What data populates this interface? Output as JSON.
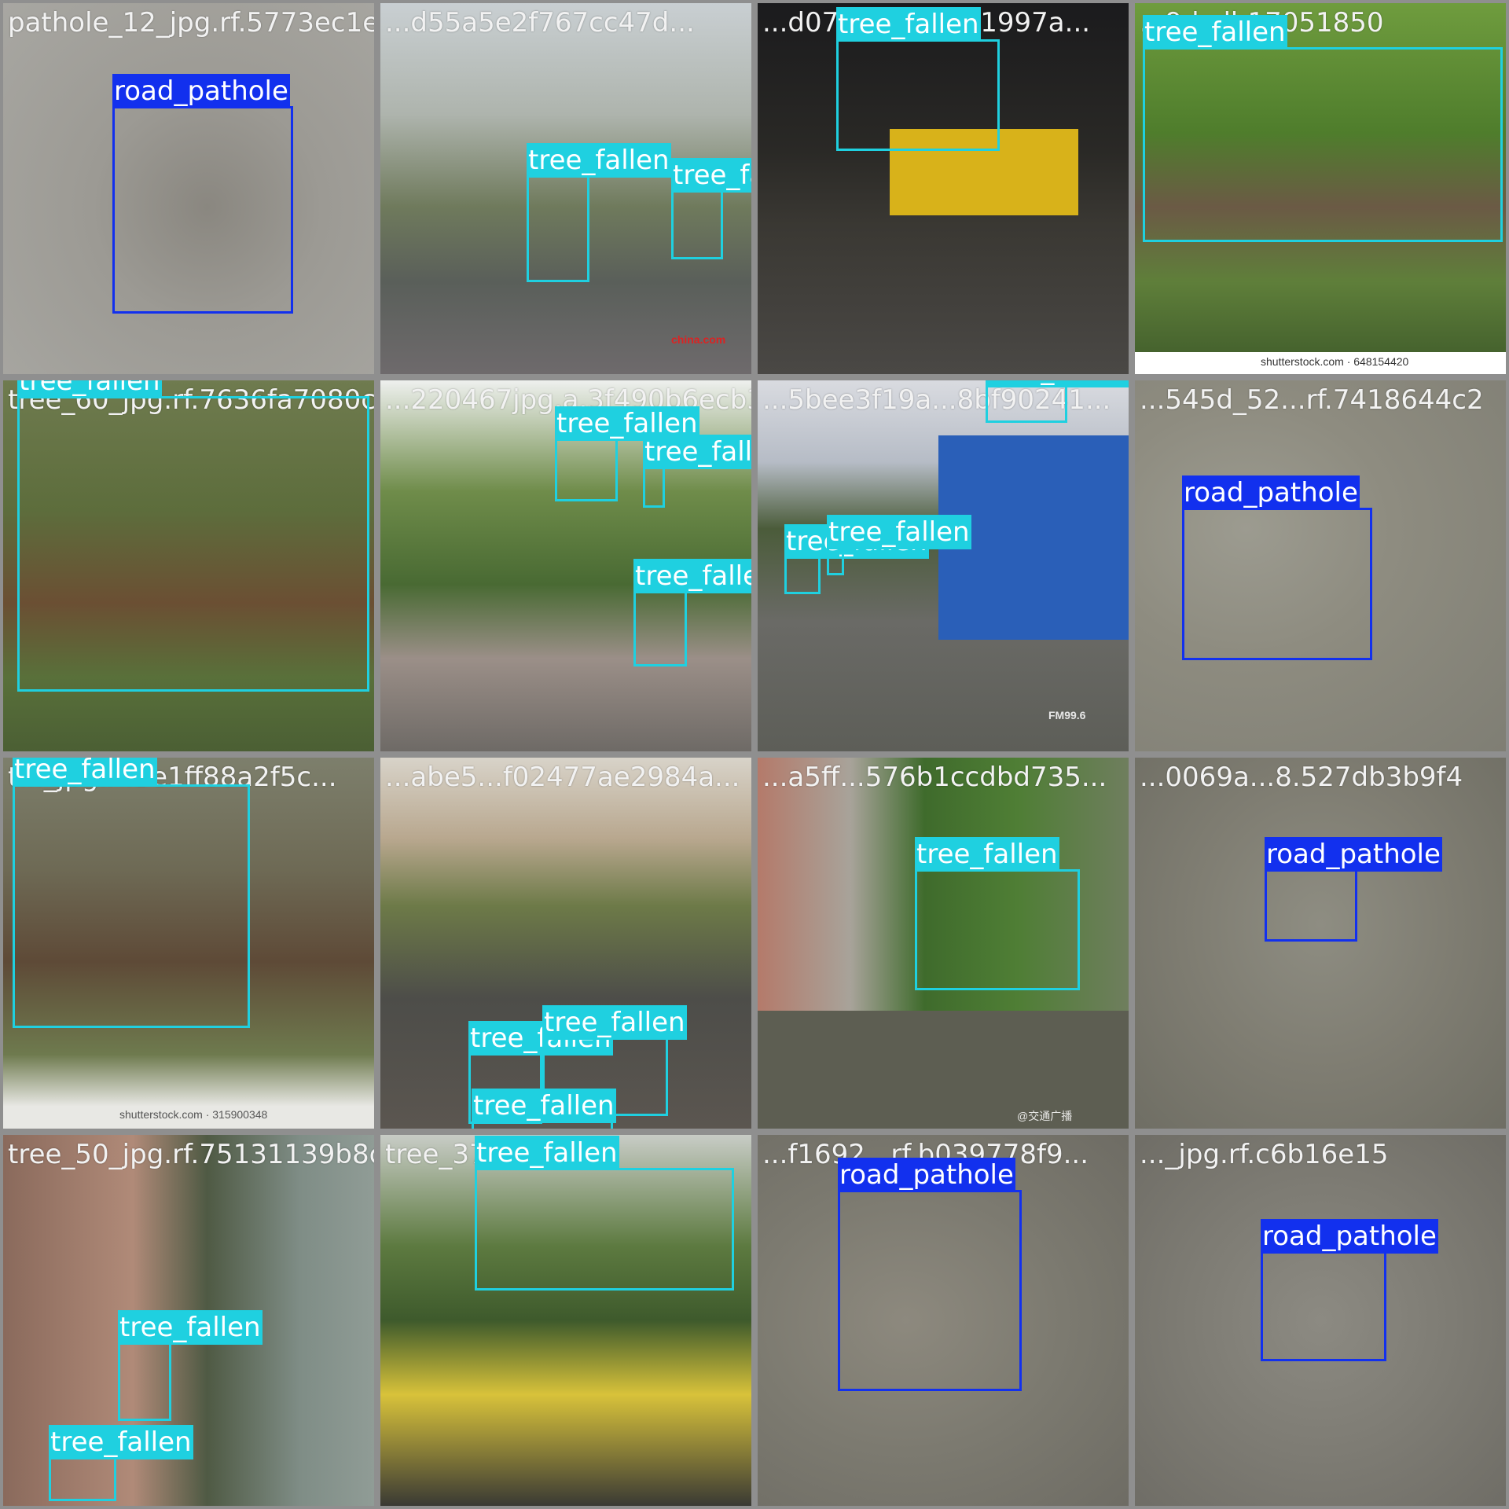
{
  "colors": {
    "road_pathole": "#1230ee",
    "tree_fallen": "#1fd0e0",
    "grid_background": "#8f8f8f"
  },
  "tiles": [
    {
      "title": "pathole_12_jpg.rf.5773ec1e...",
      "boxes": [
        {
          "label": "road_pathole"
        }
      ]
    },
    {
      "title": "...d55a5e2f767cc47d...",
      "boxes": [
        {
          "label": "tree_fallen"
        },
        {
          "label": "tree_fallen"
        }
      ]
    },
    {
      "title": "...d079b...61abc1997a...",
      "boxes": [
        {
          "label": "tree_fallen"
        }
      ]
    },
    {
      "title": "...9dcdb17051850",
      "boxes": [
        {
          "label": "tree_fallen"
        }
      ]
    },
    {
      "title": "tree_60_jpg.rf.7636fa7080c...",
      "boxes": [
        {
          "label": "tree_fallen"
        }
      ]
    },
    {
      "title": "...220467jpg.a.3f490b6ecb35...",
      "boxes": [
        {
          "label": "tree_fallen"
        },
        {
          "label": "tree_fallen"
        },
        {
          "label": "tree_fallen"
        }
      ]
    },
    {
      "title": "...5bee3f19a...8bf90241...",
      "boxes": [
        {
          "label": "tree_fallen"
        },
        {
          "label": "tree_fallen"
        },
        {
          "label": "tree_fallen"
        }
      ]
    },
    {
      "title": "...545d_52...rf.7418644c2",
      "boxes": [
        {
          "label": "road_pathole"
        }
      ]
    },
    {
      "title": "t..._jpg.rf.3e1ff88a2f5c...",
      "boxes": [
        {
          "label": "tree_fallen"
        }
      ]
    },
    {
      "title": "...abe5...f02477ae2984a...",
      "boxes": [
        {
          "label": "tree_fallen"
        },
        {
          "label": "tree_fallen"
        },
        {
          "label": "tree_fallen"
        }
      ]
    },
    {
      "title": "...a5ff...576b1ccdbd735...",
      "boxes": [
        {
          "label": "tree_fallen"
        }
      ]
    },
    {
      "title": "...0069a...8.527db3b9f4",
      "boxes": [
        {
          "label": "road_pathole"
        }
      ]
    },
    {
      "title": "tree_50_jpg.rf.75131139b8c...",
      "boxes": [
        {
          "label": "tree_fallen"
        },
        {
          "label": "tree_fallen"
        }
      ]
    },
    {
      "title": "tree_37_jpg...",
      "boxes": [
        {
          "label": "tree_fallen"
        }
      ]
    },
    {
      "title": "...f1692...rf.b039778f9...",
      "boxes": [
        {
          "label": "road_pathole"
        }
      ]
    },
    {
      "title": "..._jpg.rf.c6b16e15",
      "boxes": [
        {
          "label": "road_pathole"
        }
      ]
    }
  ],
  "watermarks": {
    "china_com": "china.com",
    "shutterstock1": "shutterstock.com · 648154420",
    "fm": "FM99.6",
    "shutterstock2": "shutterstock.com · 315900348",
    "tianjin": "@交通广播"
  }
}
